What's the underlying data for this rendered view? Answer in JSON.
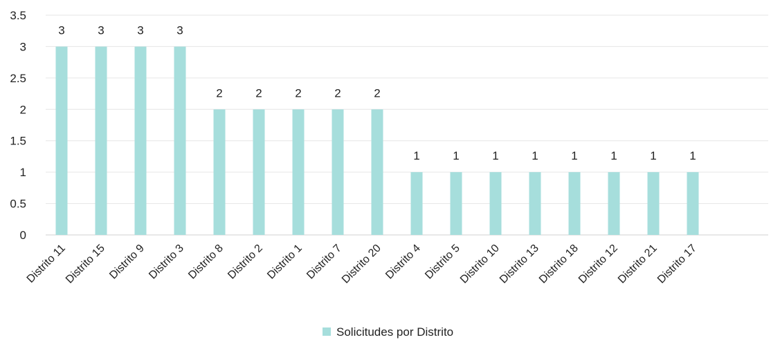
{
  "chart_data": {
    "type": "bar",
    "categories": [
      "Distrito 11",
      "Distrito 15",
      "Distrito 9",
      "Distrito 3",
      "Distrito 8",
      "Distrito 2",
      "Distrito 1",
      "Distrito 7",
      "Distrito 20",
      "Distrito 4",
      "Distrito 5",
      "Distrito 10",
      "Distrito 13",
      "Distrito 18",
      "Distrito 12",
      "Distrito 21",
      "Distrito 17"
    ],
    "series": [
      {
        "name": "Solicitudes por Distrito",
        "values": [
          3,
          3,
          3,
          3,
          2,
          2,
          2,
          2,
          2,
          1,
          1,
          1,
          1,
          1,
          1,
          1,
          1
        ]
      }
    ],
    "ylim": [
      0,
      3.5
    ],
    "yticks": [
      "0",
      "0.5",
      "1",
      "1.5",
      "2",
      "2.5",
      "3",
      "3.5"
    ],
    "data_labels": true,
    "grid": true,
    "legend_position": "bottom",
    "colors": {
      "bar": "#a6dedc",
      "grid": "#e6e6e6",
      "axis": "#d0d0d0"
    }
  }
}
